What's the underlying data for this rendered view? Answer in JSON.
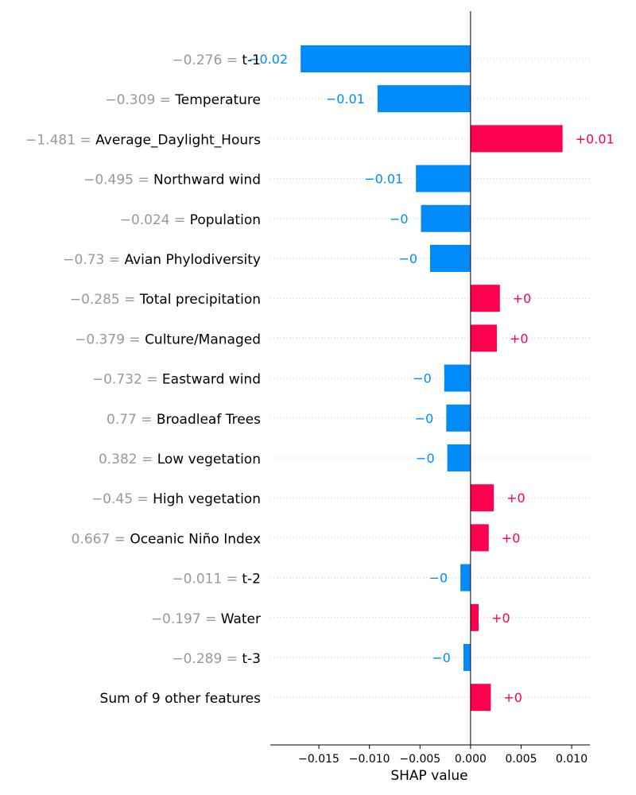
{
  "chart_data": {
    "type": "bar",
    "orientation": "horizontal",
    "xlabel": "SHAP value",
    "xlim": [
      -0.0198,
      0.0118
    ],
    "xticks": [
      -0.015,
      -0.01,
      -0.005,
      0.0,
      0.005,
      0.01
    ],
    "xtick_labels": [
      "−0.015",
      "−0.010",
      "−0.005",
      "0.000",
      "0.005",
      "0.010"
    ],
    "grid": "dotted row lines",
    "colors": {
      "positive": "#ff0051",
      "negative": "#008bfb",
      "value_label": "#999999",
      "feature_label": "#000000"
    },
    "rows": [
      {
        "value_label": "−0.276 = ",
        "feature": "t-1",
        "shap": -0.0168,
        "bar_text": "−0.02"
      },
      {
        "value_label": "−0.309 = ",
        "feature": "Temperature",
        "shap": -0.0092,
        "bar_text": "−0.01"
      },
      {
        "value_label": "−1.481 = ",
        "feature": "Average_Daylight_Hours",
        "shap": 0.0091,
        "bar_text": "+0.01"
      },
      {
        "value_label": "−0.495 = ",
        "feature": "Northward wind",
        "shap": -0.0054,
        "bar_text": "−0.01"
      },
      {
        "value_label": "−0.024 = ",
        "feature": "Population",
        "shap": -0.0049,
        "bar_text": "−0"
      },
      {
        "value_label": "−0.73 = ",
        "feature": "Avian Phylodiversity",
        "shap": -0.004,
        "bar_text": "−0"
      },
      {
        "value_label": "−0.285 = ",
        "feature": "Total precipitation",
        "shap": 0.0029,
        "bar_text": "+0"
      },
      {
        "value_label": "−0.379 = ",
        "feature": "Culture/Managed",
        "shap": 0.0026,
        "bar_text": "+0"
      },
      {
        "value_label": "−0.732 = ",
        "feature": "Eastward wind",
        "shap": -0.0026,
        "bar_text": "−0"
      },
      {
        "value_label": "0.77 = ",
        "feature": "Broadleaf Trees",
        "shap": -0.0024,
        "bar_text": "−0"
      },
      {
        "value_label": "0.382 = ",
        "feature": "Low vegetation",
        "shap": -0.0023,
        "bar_text": "−0"
      },
      {
        "value_label": "−0.45 = ",
        "feature": "High vegetation",
        "shap": 0.0023,
        "bar_text": "+0"
      },
      {
        "value_label": "0.667 = ",
        "feature": "Oceanic Niño Index",
        "shap": 0.0018,
        "bar_text": "+0"
      },
      {
        "value_label": "−0.011 = ",
        "feature": "t-2",
        "shap": -0.001,
        "bar_text": "−0"
      },
      {
        "value_label": "−0.197 = ",
        "feature": "Water",
        "shap": 0.0008,
        "bar_text": "+0"
      },
      {
        "value_label": "−0.289 = ",
        "feature": "t-3",
        "shap": -0.0007,
        "bar_text": "−0"
      },
      {
        "value_label": "",
        "feature": "Sum of 9 other features",
        "shap": 0.002,
        "bar_text": "+0"
      }
    ]
  }
}
